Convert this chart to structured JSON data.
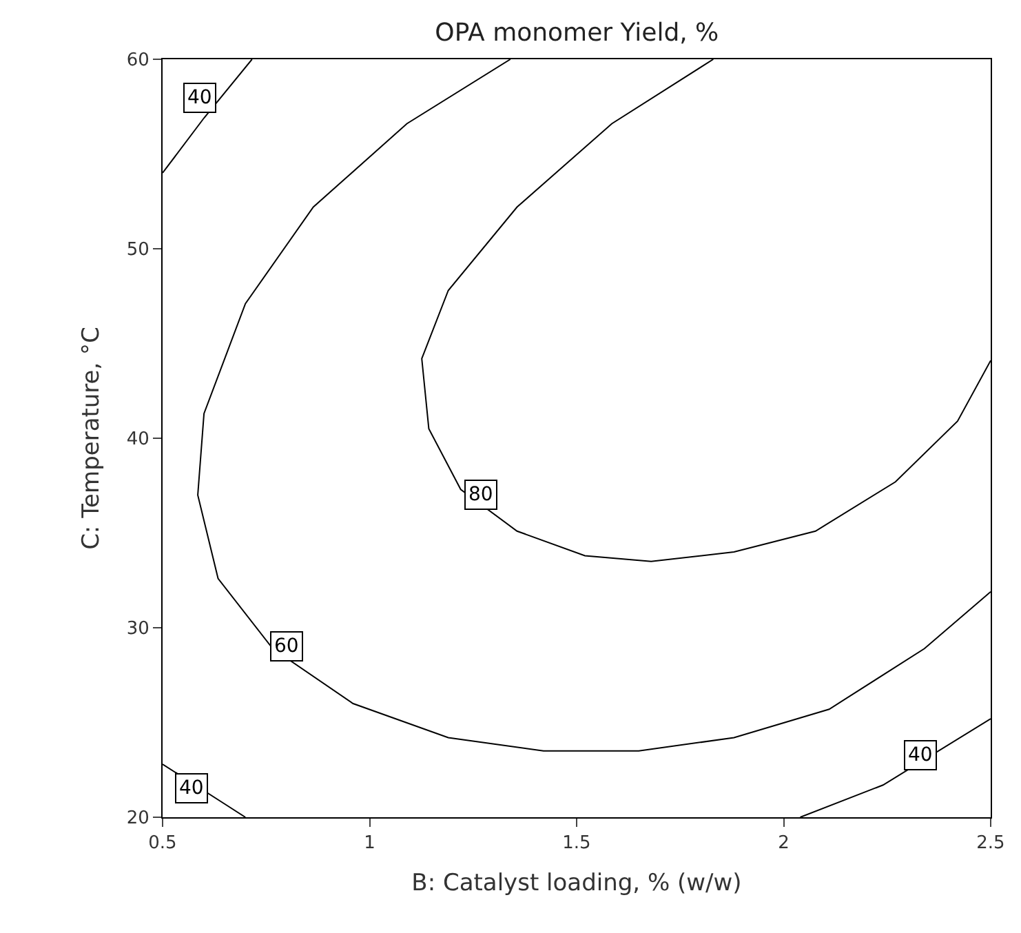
{
  "chart_data": {
    "type": "line",
    "title": "OPA monomer Yield, %",
    "xlabel": "B: Catalyst loading, % (w/w)",
    "ylabel": "C: Temperature, °C",
    "xlim": [
      0.5,
      2.5
    ],
    "xticks": [
      0.5,
      1,
      1.5,
      2,
      2.5
    ],
    "ylim": [
      20,
      60
    ],
    "yticks": [
      20,
      30,
      40,
      50,
      60
    ],
    "marker": "none",
    "line_style": "solid",
    "series": [
      {
        "color": "#000000",
        "x": [
          1.83,
          1.585,
          1.356,
          1.19,
          1.126,
          1.143,
          1.22,
          1.356,
          1.52,
          1.68,
          1.88,
          2.077,
          2.27,
          2.42,
          2.5
        ],
        "values": [
          60,
          56.6,
          52.2,
          47.8,
          44.2,
          40.5,
          37.3,
          35.1,
          33.8,
          33.5,
          34.0,
          35.1,
          37.7,
          40.9,
          44.1
        ]
      },
      {
        "color": "#000000",
        "x": [
          1.34,
          1.09,
          0.864,
          0.7,
          0.6,
          0.585,
          0.634,
          0.766,
          0.96,
          1.19,
          1.42,
          1.65,
          1.88,
          2.11,
          2.34,
          2.5
        ],
        "values": [
          60,
          56.6,
          52.2,
          47.1,
          41.3,
          37,
          32.6,
          28.9,
          26.0,
          24.2,
          23.5,
          23.5,
          24.2,
          25.7,
          28.9,
          31.9
        ]
      },
      {
        "color": "#000000",
        "x": [
          0.5,
          0.6,
          0.716
        ],
        "values": [
          54.0,
          56.9,
          60
        ]
      },
      {
        "color": "#000000",
        "x": [
          0.5,
          0.65,
          0.7
        ],
        "values": [
          22.8,
          20.7,
          20
        ]
      },
      {
        "color": "#000000",
        "x": [
          2.04,
          2.24,
          2.5
        ],
        "values": [
          20,
          21.7,
          25.2
        ]
      }
    ],
    "annotations": [
      {
        "text": "80",
        "x": 1.27,
        "y": 37
      },
      {
        "text": "60",
        "x": 0.8,
        "y": 29
      },
      {
        "text": "40",
        "x": 0.59,
        "y": 58
      },
      {
        "text": "40",
        "x": 0.57,
        "y": 21.5
      },
      {
        "text": "40",
        "x": 2.33,
        "y": 23.3
      }
    ]
  }
}
